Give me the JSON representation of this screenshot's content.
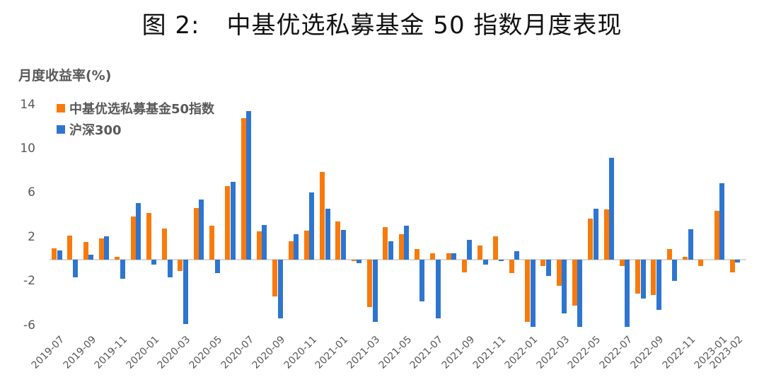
{
  "title": {
    "figure": "图 2:",
    "text": "中基优选私募基金 50 指数月度表现"
  },
  "chart_data": {
    "type": "bar",
    "title": "图 2: 中基优选私募基金 50 指数月度表现",
    "xlabel": "",
    "ylabel": "月度收益率(%)",
    "ylim": [
      -6,
      14
    ],
    "yticks": [
      14,
      10,
      6,
      2,
      -2,
      -6
    ],
    "grid": false,
    "legend_position": "top-left",
    "categories": [
      "2019-07",
      "2019-08",
      "2019-09",
      "2019-10",
      "2019-11",
      "2019-12",
      "2020-01",
      "2020-02",
      "2020-03",
      "2020-04",
      "2020-05",
      "2020-06",
      "2020-07",
      "2020-08",
      "2020-09",
      "2020-10",
      "2020-11",
      "2020-12",
      "2021-01",
      "2021-02",
      "2021-03",
      "2021-04",
      "2021-05",
      "2021-06",
      "2021-07",
      "2021-08",
      "2021-09",
      "2021-10",
      "2021-11",
      "2021-12",
      "2022-01",
      "2022-02",
      "2022-03",
      "2022-04",
      "2022-05",
      "2022-06",
      "2022-07",
      "2022-08",
      "2022-09",
      "2022-10",
      "2022-11",
      "2022-12",
      "2023-01",
      "2023-02"
    ],
    "xtick_labels": [
      "2019-07",
      "2019-09",
      "2019-11",
      "2020-01",
      "2020-03",
      "2020-05",
      "2020-07",
      "2020-09",
      "2020-11",
      "2021-01",
      "2021-03",
      "2021-05",
      "2021-07",
      "2021-09",
      "2021-11",
      "2022-01",
      "2022-03",
      "2022-05",
      "2022-07",
      "2022-09",
      "2022-11",
      "2023-01",
      "2023-02"
    ],
    "series": [
      {
        "name": "中基优选私募基金50指数",
        "color": "#F97A0C",
        "values": [
          1.0,
          2.2,
          1.6,
          1.9,
          0.25,
          3.9,
          4.2,
          2.8,
          -1.05,
          4.7,
          3.1,
          6.65,
          12.8,
          2.55,
          -3.35,
          1.65,
          2.6,
          7.95,
          3.45,
          -0.1,
          -4.3,
          2.95,
          2.3,
          0.95,
          0.55,
          0.6,
          -1.15,
          1.3,
          2.1,
          -1.2,
          -5.65,
          -0.6,
          -2.35,
          -4.15,
          3.7,
          4.55,
          -0.6,
          -3.1,
          -3.2,
          0.95,
          0.25,
          -0.55,
          4.4,
          -1.15
        ]
      },
      {
        "name": "沪深300",
        "color": "#2E75D0",
        "values": [
          0.85,
          -1.6,
          0.45,
          2.1,
          -1.75,
          5.1,
          -0.45,
          -1.6,
          -5.85,
          5.45,
          -1.2,
          7.05,
          13.45,
          3.15,
          -5.3,
          2.3,
          6.1,
          4.6,
          2.7,
          -0.3,
          -5.65,
          1.65,
          3.05,
          -3.8,
          -5.35,
          0.6,
          1.8,
          -0.45,
          -0.15,
          0.75,
          -6.1,
          -1.5,
          -4.9,
          -6.1,
          4.6,
          9.2,
          -6.1,
          -3.55,
          -4.55,
          -1.9,
          2.75,
          0.0,
          6.95,
          -0.25
        ]
      }
    ]
  }
}
